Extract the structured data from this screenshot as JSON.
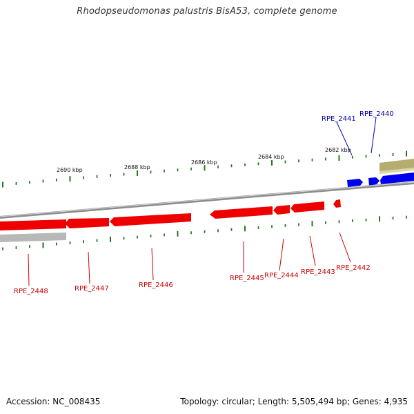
{
  "title": "Rhodopseudomonas palustris BisA53, complete genome",
  "footer": {
    "accession": "Accession: NC_008435",
    "summary": "Topology: circular; Length: 5,505,494 bp; Genes: 4,935"
  },
  "colors": {
    "tick": "#1f7a1f",
    "backbone": "#8c8c8c",
    "reverse_gene": "#ee0000",
    "reverse_label": "#cc0000",
    "forward_gene": "#0000ee",
    "forward_label": "#0000aa",
    "gray_feature": "#b8b8b8",
    "olive_feature": "#b5ad6e"
  },
  "scale_labels": [
    {
      "id": "tick-2690",
      "text": "2690 kbp"
    },
    {
      "id": "tick-2688",
      "text": "2688 kbp"
    },
    {
      "id": "tick-2686",
      "text": "2686 kbp"
    },
    {
      "id": "tick-2684",
      "text": "2684 kbp"
    },
    {
      "id": "tick-2682",
      "text": "2682 kbp"
    }
  ],
  "genes": [
    {
      "id": "RPE_2440",
      "label": "RPE_2440",
      "strand": "forward"
    },
    {
      "id": "RPE_2441",
      "label": "RPE_2441",
      "strand": "forward"
    },
    {
      "id": "RPE_2442",
      "label": "RPE_2442",
      "strand": "reverse"
    },
    {
      "id": "RPE_2443",
      "label": "RPE_2443",
      "strand": "reverse"
    },
    {
      "id": "RPE_2444",
      "label": "RPE_2444",
      "strand": "reverse"
    },
    {
      "id": "RPE_2445",
      "label": "RPE_2445",
      "strand": "reverse"
    },
    {
      "id": "RPE_2446",
      "label": "RPE_2446",
      "strand": "reverse"
    },
    {
      "id": "RPE_2447",
      "label": "RPE_2447",
      "strand": "reverse"
    },
    {
      "id": "RPE_2448",
      "label": "RPE_2448",
      "strand": "reverse"
    }
  ]
}
